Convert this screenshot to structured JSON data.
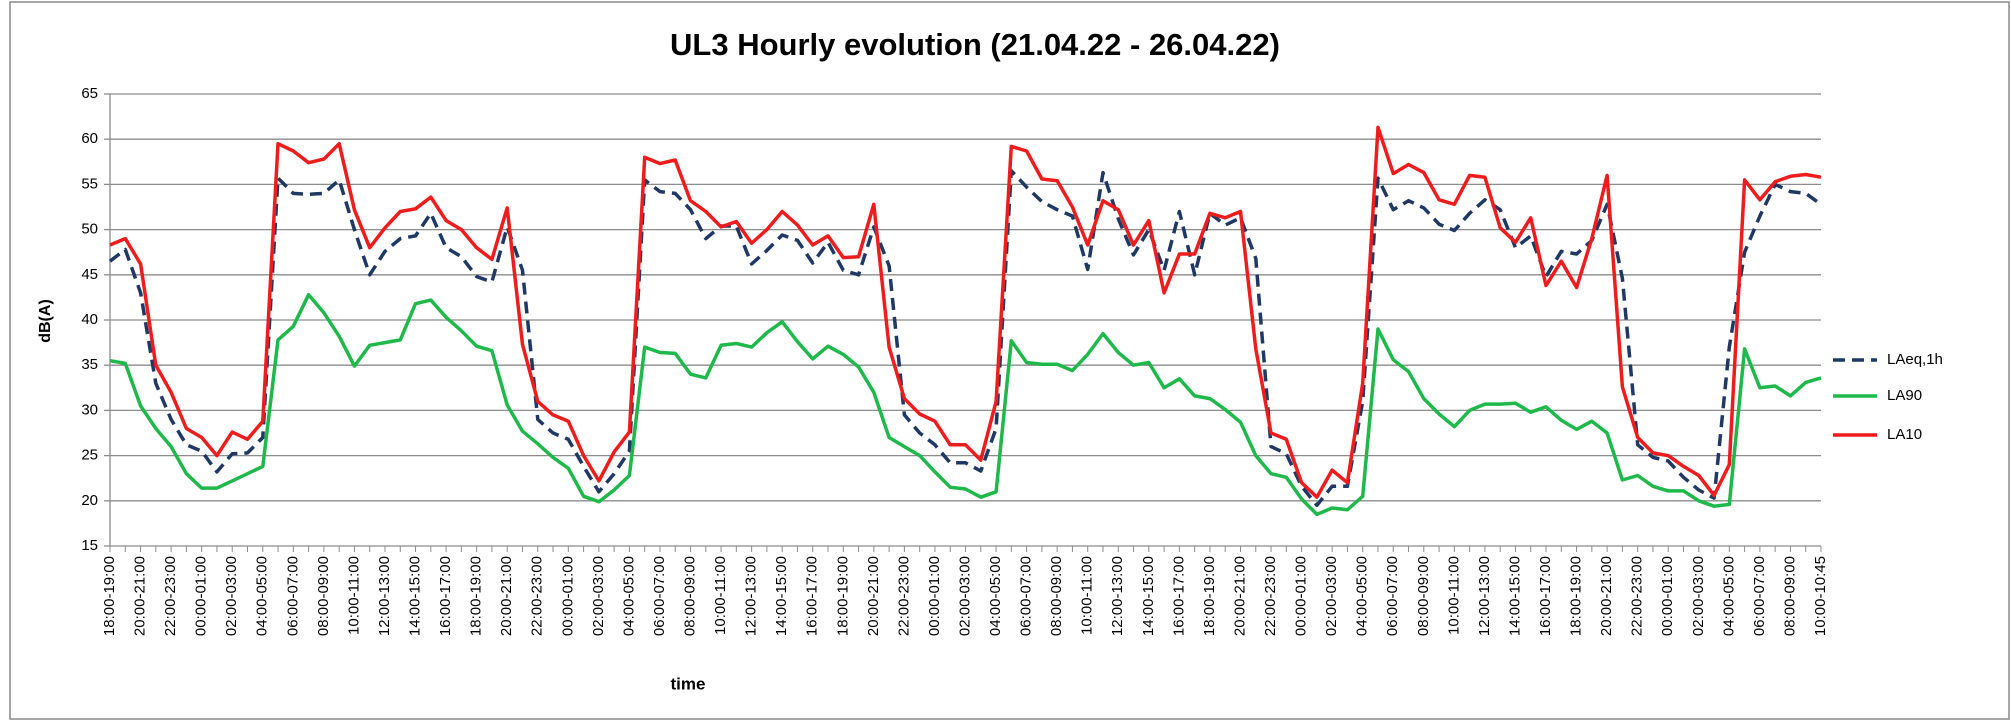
{
  "chart_data": {
    "type": "line",
    "title": "UL3 Hourly evolution (21.04.22 - 26.04.22)",
    "x_label": "time",
    "y_label": "dB(A)",
    "categories": [
      "18:00-19:00",
      null,
      "20:00-21:00",
      null,
      "22:00-23:00",
      null,
      "00:00-01:00",
      null,
      "02:00-03:00",
      null,
      "04:00-05:00",
      null,
      "06:00-07:00",
      null,
      "08:00-09:00",
      null,
      "10:00-11:00",
      null,
      "12:00-13:00",
      null,
      "14:00-15:00",
      null,
      "16:00-17:00",
      null,
      "18:00-19:00",
      null,
      "20:00-21:00",
      null,
      "22:00-23:00",
      null,
      "00:00-01:00",
      null,
      "02:00-03:00",
      null,
      "04:00-05:00",
      null,
      "06:00-07:00",
      null,
      "08:00-09:00",
      null,
      "10:00-11:00",
      null,
      "12:00-13:00",
      null,
      "14:00-15:00",
      null,
      "16:00-17:00",
      null,
      "18:00-19:00",
      null,
      "20:00-21:00",
      null,
      "22:00-23:00",
      null,
      "00:00-01:00",
      null,
      "02:00-03:00",
      null,
      "04:00-05:00",
      null,
      "06:00-07:00",
      null,
      "08:00-09:00",
      null,
      "10:00-11:00",
      null,
      "12:00-13:00",
      null,
      "14:00-15:00",
      null,
      "16:00-17:00",
      null,
      "18:00-19:00",
      null,
      "20:00-21:00",
      null,
      "22:00-23:00",
      null,
      "00:00-01:00",
      null,
      "02:00-03:00",
      null,
      "04:00-05:00",
      null,
      "06:00-07:00",
      null,
      "08:00-09:00",
      null,
      "10:00-11:00",
      null,
      "12:00-13:00",
      null,
      "14:00-15:00",
      null,
      "16:00-17:00",
      null,
      "18:00-19:00",
      null,
      "20:00-21:00",
      null,
      "22:00-23:00",
      null,
      "00:00-01:00",
      null,
      "02:00-03:00",
      null,
      "04:00-05:00",
      null,
      "06:00-07:00",
      null,
      "08:00-09:00",
      null,
      "10:00-10:45"
    ],
    "series": [
      {
        "name": "LAeq,1h",
        "color": "#1f3864",
        "dashed": true,
        "values": [
          46.5,
          47.8,
          43,
          33,
          29,
          26.2,
          25.5,
          23.2,
          25.2,
          25.3,
          27,
          55.7,
          54,
          53.9,
          54,
          55.5,
          50,
          45,
          47.6,
          49,
          49.3,
          51.8,
          48,
          47,
          44.8,
          44.2,
          50.3,
          45.5,
          29,
          27.5,
          26.8,
          23.8,
          21,
          23,
          25.5,
          55.5,
          54.2,
          54,
          52.2,
          49,
          50.4,
          50.4,
          46.2,
          47.7,
          49.4,
          48.8,
          46.3,
          48.6,
          45.5,
          45,
          50.3,
          46,
          29.5,
          27.5,
          26.2,
          24.2,
          24.2,
          23.3,
          28,
          56.5,
          54.7,
          53.1,
          52.2,
          51.5,
          45.6,
          56.3,
          51.2,
          47.2,
          50,
          45.5,
          52,
          45,
          51.8,
          50.5,
          51.3,
          46.8,
          26,
          25.2,
          21.6,
          19.5,
          21.6,
          21.6,
          31,
          55.7,
          52.2,
          53.2,
          52.4,
          50.6,
          49.9,
          51.8,
          53.3,
          52.2,
          48,
          49.3,
          44.8,
          47.6,
          47.3,
          48.8,
          52.8,
          44.6,
          26.2,
          24.8,
          24.4,
          22.6,
          21.2,
          20.3,
          37,
          47.5,
          51.5,
          55,
          54.2,
          54,
          52.8
        ]
      },
      {
        "name": "LA90",
        "color": "#1fb84a",
        "dashed": false,
        "values": [
          35.5,
          35.2,
          30.5,
          28,
          26,
          23,
          21.4,
          21.4,
          22.2,
          23,
          23.8,
          37.8,
          39.3,
          42.8,
          40.8,
          38.2,
          34.9,
          37.2,
          37.5,
          37.8,
          41.8,
          42.2,
          40.3,
          38.8,
          37.1,
          36.6,
          30.6,
          27.7,
          26.3,
          24.8,
          23.6,
          20.5,
          19.9,
          21.2,
          22.8,
          37,
          36.4,
          36.3,
          34,
          33.6,
          37.2,
          37.4,
          37,
          38.6,
          39.8,
          37.6,
          35.7,
          37.1,
          36.2,
          34.8,
          32,
          27,
          26,
          25,
          23.2,
          21.5,
          21.3,
          20.4,
          21,
          37.7,
          35.3,
          35.1,
          35.1,
          34.4,
          36.2,
          38.5,
          36.4,
          35,
          35.3,
          32.5,
          33.5,
          31.6,
          31.3,
          30.1,
          28.7,
          25,
          23,
          22.6,
          20.2,
          18.5,
          19.2,
          19,
          20.5,
          39,
          35.6,
          34.3,
          31.3,
          29.6,
          28.2,
          30,
          30.7,
          30.7,
          30.8,
          29.8,
          30.4,
          28.9,
          27.9,
          28.8,
          27.5,
          22.3,
          22.8,
          21.6,
          21.1,
          21.1,
          20,
          19.4,
          19.6,
          36.8,
          32.5,
          32.7,
          31.6,
          33.1,
          33.6
        ]
      },
      {
        "name": "LA10",
        "color": "#ee1c1c",
        "dashed": false,
        "values": [
          48.3,
          49,
          46.2,
          35,
          32,
          28,
          27,
          25,
          27.6,
          26.8,
          28.8,
          59.5,
          58.7,
          57.4,
          57.8,
          59.5,
          52.2,
          48,
          50.2,
          52,
          52.3,
          53.6,
          51,
          50,
          48,
          46.7,
          52.4,
          37.3,
          31,
          29.5,
          28.8,
          25,
          22.2,
          25.4,
          27.6,
          58,
          57.3,
          57.7,
          53.2,
          52,
          50.3,
          50.9,
          48.5,
          50,
          52,
          50.5,
          48.3,
          49.3,
          46.9,
          47,
          52.8,
          37,
          31.3,
          29.6,
          28.8,
          26.2,
          26.2,
          24.5,
          31,
          59.2,
          58.7,
          55.6,
          55.4,
          52.5,
          48.3,
          53.2,
          52.2,
          48.3,
          51,
          43,
          47.3,
          47.3,
          51.8,
          51.3,
          52,
          36.8,
          27.5,
          26.8,
          22,
          20.4,
          23.4,
          22,
          33,
          61.3,
          56.2,
          57.2,
          56.3,
          53.3,
          52.8,
          56,
          55.8,
          50.2,
          48.6,
          51.3,
          43.8,
          46.5,
          43.6,
          49,
          56,
          32.6,
          27,
          25.3,
          25,
          23.8,
          22.8,
          20.6,
          24,
          55.5,
          53.3,
          55.3,
          55.9,
          56.1,
          55.8
        ]
      }
    ],
    "ylim": [
      15,
      65
    ],
    "yticks": [
      15,
      20,
      25,
      30,
      35,
      40,
      45,
      50,
      55,
      60,
      65
    ],
    "grid": true,
    "legend": "right"
  }
}
